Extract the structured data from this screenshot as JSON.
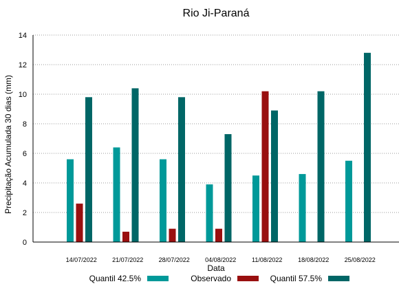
{
  "chart_data": {
    "type": "bar",
    "title": "Rio Ji-Paraná",
    "xlabel": "Data",
    "ylabel": "Precipitação Acumulada 30 dias (mm)",
    "ylim": [
      0,
      14
    ],
    "yticks": [
      0,
      2,
      4,
      6,
      8,
      10,
      12,
      14
    ],
    "grid": "horizontal dotted",
    "legend_position": "bottom",
    "categories": [
      "14/07/2022",
      "21/07/2022",
      "28/07/2022",
      "04/08/2022",
      "11/08/2022",
      "18/08/2022",
      "25/08/2022"
    ],
    "series": [
      {
        "name": "Quantil 42.5%",
        "color": "#009999",
        "values": [
          5.6,
          6.4,
          5.6,
          3.9,
          4.5,
          4.6,
          5.5
        ]
      },
      {
        "name": "Observado",
        "color": "#990f0f",
        "values": [
          2.6,
          0.7,
          0.9,
          0.9,
          10.2,
          null,
          null
        ]
      },
      {
        "name": "Quantil 57.5%",
        "color": "#006666",
        "values": [
          9.8,
          10.4,
          9.8,
          7.3,
          8.9,
          10.2,
          12.8
        ]
      }
    ]
  }
}
